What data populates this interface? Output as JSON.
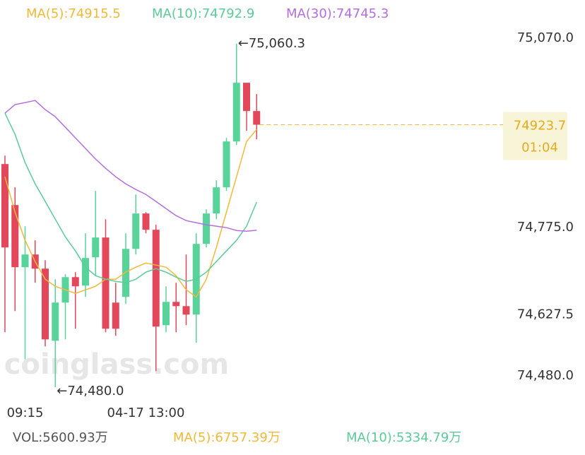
{
  "chart_data": {
    "type": "candlestick",
    "categories": [
      null,
      null,
      "09:15",
      null,
      null,
      null,
      null,
      null,
      null,
      null,
      null,
      null,
      null,
      null,
      "04-17 13:00",
      null,
      null,
      null,
      null,
      null,
      null,
      null,
      null,
      null,
      null,
      null
    ],
    "open": [
      74857.2,
      74787.9,
      74682.8,
      74704.3,
      74680.4,
      74558.5,
      74623.0,
      74666.0,
      74651.7,
      74699.5,
      74733.0,
      74623.0,
      74632.6,
      74713.8,
      74773.6,
      74746.1,
      74584.8,
      74624.2,
      74617.0,
      74602.7,
      74722.2,
      74773.6,
      74817.8,
      74895.4,
      74994.6,
      74946.8
    ],
    "high": [
      74871.5,
      74817.8,
      74752.1,
      74728.2,
      74694.7,
      74662.5,
      74670.8,
      74674.4,
      74740.1,
      74811.8,
      74764.0,
      74656.5,
      74740.1,
      74805.8,
      74775.9,
      74754.5,
      74650.5,
      74656.5,
      74704.3,
      74740.1,
      74780.7,
      74829.7,
      74901.4,
      75060.3,
      74994.6,
      74975.5
    ],
    "low": [
      74572.8,
      74608.7,
      74527.4,
      74656.5,
      74548.9,
      74480.0,
      74560.8,
      74578.8,
      74632.6,
      74668.4,
      74572.8,
      74566.8,
      74620.6,
      74704.3,
      74740.1,
      74507.1,
      74572.8,
      74572.8,
      74584.8,
      74554.9,
      74716.2,
      74764.0,
      74811.8,
      74889.5,
      74913.3,
      74899.0
    ],
    "close": [
      74716.2,
      74682.8,
      74704.3,
      74680.4,
      74560.8,
      74623.0,
      74666.0,
      74650.5,
      74698.3,
      74733.0,
      74578.8,
      74578.8,
      74713.8,
      74773.6,
      74746.1,
      74582.4,
      74624.2,
      74617.0,
      74602.7,
      74722.2,
      74773.6,
      74817.8,
      74895.4,
      74994.6,
      74946.8,
      74923.7
    ],
    "up_color": "#58d39a",
    "down_color": "#e2475a",
    "series": [
      {
        "name": "MA(5):74915.5",
        "color": "#f0b93a",
        "values": [
          74835.7,
          74775.9,
          74728.2,
          74692.3,
          74662.5,
          74650.5,
          74644.5,
          74638.6,
          74644.5,
          74650.5,
          74662.5,
          74662.5,
          74674.4,
          74682.8,
          74689.9,
          74686.4,
          74682.8,
          74668.4,
          74644.5,
          74632.6,
          74662.5,
          74716.2,
          74775.9,
          74835.7,
          74895.4,
          74915.5
        ]
      },
      {
        "name": "MA(10):74792.9",
        "color": "#5ccb98",
        "values": [
          74943.2,
          74907.4,
          74859.6,
          74823.7,
          74793.9,
          74764.0,
          74734.1,
          74710.3,
          74682.8,
          74668.4,
          74662.5,
          74658.9,
          74656.5,
          74662.5,
          74674.4,
          74680.4,
          74674.4,
          74666.0,
          74658.9,
          74662.5,
          74674.4,
          74692.3,
          74710.3,
          74728.2,
          74752.1,
          74792.9
        ]
      },
      {
        "name": "MA(30):74745.3",
        "color": "#b36ee0",
        "values": [
          74943.2,
          74957.6,
          74961.1,
          74964.7,
          74949.2,
          74937.2,
          74919.3,
          74901.4,
          74883.5,
          74865.6,
          74850.0,
          74835.7,
          74823.7,
          74814.2,
          74805.8,
          74793.9,
          74781.9,
          74770.0,
          74761.6,
          74758.0,
          74754.5,
          74752.1,
          74749.7,
          74744.9,
          74743.7,
          74745.3
        ]
      }
    ],
    "ylim": [
      74480.0,
      75070.0
    ],
    "yticks": [
      {
        "value": 75070.0,
        "label": "75,070.0"
      },
      {
        "value": 74775.0,
        "label": "74,775.0"
      },
      {
        "value": 74627.5,
        "label": "74,627.5"
      },
      {
        "value": 74480.0,
        "label": "74,480.0"
      }
    ],
    "max_label": "←75,060.3",
    "min_label": "←74,480.0",
    "last_price": 74923.7,
    "countdown": "01:04",
    "watermark": "coinglass.com",
    "volume_legend": [
      {
        "text": "VOL:5600.93万",
        "color": "#555555"
      },
      {
        "text": "MA(5):6757.39万",
        "color": "#f0b93a"
      },
      {
        "text": "MA(10):5334.79万",
        "color": "#5ccb98"
      }
    ]
  }
}
